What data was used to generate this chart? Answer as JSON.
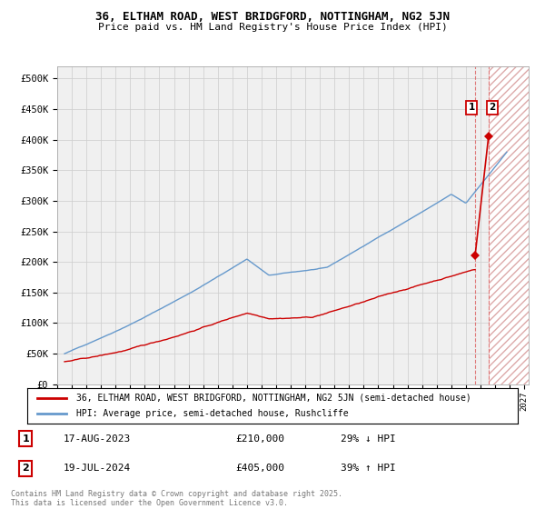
{
  "title_line1": "36, ELTHAM ROAD, WEST BRIDGFORD, NOTTINGHAM, NG2 5JN",
  "title_line2": "Price paid vs. HM Land Registry's House Price Index (HPI)",
  "background_color": "#ffffff",
  "plot_bg_color": "#f0f0f0",
  "grid_color": "#cccccc",
  "hpi_color": "#6699cc",
  "price_color": "#cc0000",
  "ylim_min": 0,
  "ylim_max": 520000,
  "yticks": [
    0,
    50000,
    100000,
    150000,
    200000,
    250000,
    300000,
    350000,
    400000,
    450000,
    500000
  ],
  "ytick_labels": [
    "£0",
    "£50K",
    "£100K",
    "£150K",
    "£200K",
    "£250K",
    "£300K",
    "£350K",
    "£400K",
    "£450K",
    "£500K"
  ],
  "legend_label_red": "36, ELTHAM ROAD, WEST BRIDGFORD, NOTTINGHAM, NG2 5JN (semi-detached house)",
  "legend_label_blue": "HPI: Average price, semi-detached house, Rushcliffe",
  "footnote": "Contains HM Land Registry data © Crown copyright and database right 2025.\nThis data is licensed under the Open Government Licence v3.0.",
  "t1_label": "1",
  "t1_date": "17-AUG-2023",
  "t1_price": "£210,000",
  "t1_hpi": "29% ↓ HPI",
  "t1_x": 2023.63,
  "t1_y": 210000,
  "t2_label": "2",
  "t2_date": "19-JUL-2024",
  "t2_price": "£405,000",
  "t2_hpi": "39% ↑ HPI",
  "t2_x": 2024.55,
  "t2_y": 405000,
  "x_min": 1995,
  "x_max": 2027
}
